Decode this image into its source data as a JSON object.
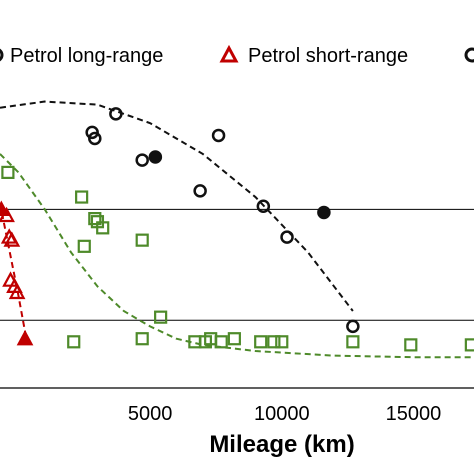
{
  "chart_data": {
    "type": "scatter",
    "title": "",
    "xlabel": "Mileage (km)",
    "ylabel": "",
    "xlim": [
      -700,
      17300
    ],
    "ylim": [
      0,
      10
    ],
    "x_ticks": [
      5000,
      10000,
      15000
    ],
    "x_tick_labels": [
      "5000",
      "10000",
      "15000"
    ],
    "gridlines_y": [
      2.2,
      5.8
    ],
    "grid": "horizontal",
    "legend_placement": "top",
    "colors": {
      "black": "#111111",
      "red": "#c00000",
      "green": "#4e8a2a"
    },
    "series": [
      {
        "name": "Petrol long-range",
        "marker": "open-circle",
        "color": "#111111",
        "points": [
          {
            "x": 3700,
            "y": 8.9
          },
          {
            "x": 2800,
            "y": 8.3
          },
          {
            "x": 2900,
            "y": 8.1
          },
          {
            "x": 7600,
            "y": 8.2
          },
          {
            "x": 4700,
            "y": 7.4
          },
          {
            "x": 6900,
            "y": 6.4
          },
          {
            "x": 9300,
            "y": 5.9
          },
          {
            "x": 10200,
            "y": 4.9
          },
          {
            "x": 12700,
            "y": 2.0
          }
        ]
      },
      {
        "name": "",
        "marker": "filled-circle",
        "color": "#111111",
        "points": [
          {
            "x": 5200,
            "y": 7.5
          },
          {
            "x": 11600,
            "y": 5.7
          }
        ]
      },
      {
        "name": "Petrol short-range",
        "marker": "open-triangle",
        "color": "#c00000",
        "points": [
          {
            "x": -450,
            "y": 5.6
          },
          {
            "x": -350,
            "y": 4.9
          },
          {
            "x": -250,
            "y": 4.8
          },
          {
            "x": -300,
            "y": 3.5
          },
          {
            "x": -150,
            "y": 3.3
          },
          {
            "x": -50,
            "y": 3.1
          }
        ]
      },
      {
        "name": "",
        "marker": "filled-triangle",
        "color": "#c00000",
        "points": [
          {
            "x": -650,
            "y": 5.8
          },
          {
            "x": 250,
            "y": 1.6
          }
        ]
      },
      {
        "name": "",
        "marker": "open-square",
        "color": "#4e8a2a",
        "points": [
          {
            "x": -400,
            "y": 7.0
          },
          {
            "x": 2400,
            "y": 6.2
          },
          {
            "x": 2900,
            "y": 5.5
          },
          {
            "x": 3000,
            "y": 5.4
          },
          {
            "x": 3200,
            "y": 5.2
          },
          {
            "x": 2500,
            "y": 4.6
          },
          {
            "x": 4700,
            "y": 4.8
          },
          {
            "x": 5400,
            "y": 2.3
          },
          {
            "x": 2100,
            "y": 1.5
          },
          {
            "x": 4700,
            "y": 1.6
          },
          {
            "x": 6700,
            "y": 1.5
          },
          {
            "x": 7100,
            "y": 1.5
          },
          {
            "x": 7300,
            "y": 1.6
          },
          {
            "x": 7700,
            "y": 1.5
          },
          {
            "x": 8200,
            "y": 1.6
          },
          {
            "x": 9200,
            "y": 1.5
          },
          {
            "x": 9700,
            "y": 1.5
          },
          {
            "x": 10000,
            "y": 1.5
          },
          {
            "x": 12700,
            "y": 1.5
          },
          {
            "x": 14900,
            "y": 1.4
          },
          {
            "x": 17200,
            "y": 1.4
          }
        ]
      }
    ],
    "trendlines": [
      {
        "color": "#111111",
        "style": "dashed",
        "points": [
          [
            -700,
            9.1
          ],
          [
            1000,
            9.3
          ],
          [
            3000,
            9.2
          ],
          [
            5000,
            8.6
          ],
          [
            7000,
            7.6
          ],
          [
            9000,
            6.2
          ],
          [
            11000,
            4.4
          ],
          [
            12700,
            2.5
          ]
        ]
      },
      {
        "color": "#c00000",
        "style": "dashed",
        "points": [
          [
            -700,
            6.0
          ],
          [
            -350,
            4.5
          ],
          [
            0,
            3.0
          ],
          [
            300,
            1.6
          ]
        ]
      },
      {
        "color": "#4e8a2a",
        "style": "dashed",
        "points": [
          [
            -700,
            7.6
          ],
          [
            0,
            7.0
          ],
          [
            1000,
            5.8
          ],
          [
            2000,
            4.4
          ],
          [
            3000,
            3.3
          ],
          [
            4000,
            2.5
          ],
          [
            5000,
            2.0
          ],
          [
            6000,
            1.6
          ],
          [
            7000,
            1.4
          ],
          [
            9000,
            1.2
          ],
          [
            12000,
            1.05
          ],
          [
            15000,
            1.0
          ],
          [
            17300,
            1.0
          ]
        ]
      }
    ]
  }
}
